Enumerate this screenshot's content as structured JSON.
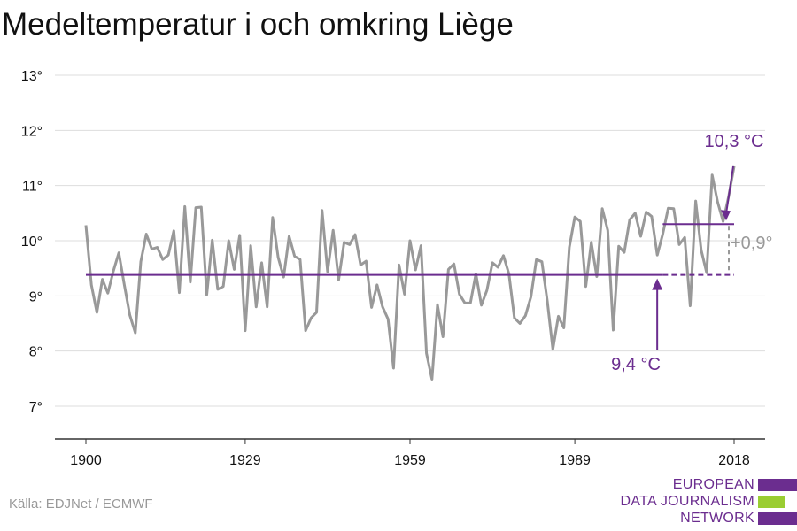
{
  "title": "Medeltemperatur i och omkring Liège",
  "source": "Källa: EDJNet / ECMWF",
  "logo": {
    "line1": "EUROPEAN",
    "line2": "DATA JOURNALISM",
    "line3": "NETWORK"
  },
  "colors": {
    "series": "#999999",
    "accent": "#6b2d8f",
    "logo_green": "#9acd32",
    "grid": "#dddddd"
  },
  "chart_data": {
    "type": "line",
    "title": "Medeltemperatur i och omkring Liège",
    "xlim": [
      1900,
      2018
    ],
    "ylim": [
      7,
      13
    ],
    "x_ticks": [
      1900,
      1929,
      1959,
      1989,
      2018
    ],
    "x_tick_labels": [
      "1900",
      "1929",
      "1959",
      "1989",
      "2018"
    ],
    "y_ticks": [
      7,
      8,
      9,
      10,
      11,
      12,
      13
    ],
    "y_tick_labels": [
      "7°",
      "8°",
      "9°",
      "10°",
      "11°",
      "12°",
      "13°"
    ],
    "grid": "horizontal",
    "series": [
      {
        "x": [
          1900,
          1901,
          1902,
          1903,
          1904,
          1905,
          1906,
          1907,
          1908,
          1909,
          1910,
          1911,
          1912,
          1913,
          1914,
          1915,
          1916,
          1917,
          1918,
          1919,
          1920,
          1921,
          1922,
          1923,
          1924,
          1925,
          1926,
          1927,
          1928,
          1929,
          1930,
          1931,
          1932,
          1933,
          1934,
          1935,
          1936,
          1937,
          1938,
          1939,
          1940,
          1941,
          1942,
          1943,
          1944,
          1945,
          1946,
          1947,
          1948,
          1949,
          1950,
          1951,
          1952,
          1953,
          1954,
          1955,
          1956,
          1957,
          1958,
          1959,
          1960,
          1961,
          1962,
          1963,
          1964,
          1965,
          1966,
          1967,
          1968,
          1969,
          1970,
          1971,
          1972,
          1973,
          1974,
          1975,
          1976,
          1977,
          1978,
          1979,
          1980,
          1981,
          1982,
          1983,
          1984,
          1985,
          1986,
          1987,
          1988,
          1989,
          1990,
          1991,
          1992,
          1993,
          1994,
          1995,
          1996,
          1997,
          1998,
          1999,
          2000,
          2001,
          2002,
          2003,
          2004,
          2005,
          2006,
          2007,
          2008,
          2009,
          2010,
          2011,
          2012,
          2013,
          2014,
          2015,
          2016,
          2017,
          2018
        ],
        "y": [
          10.28,
          9.2,
          8.7,
          9.3,
          9.05,
          9.45,
          9.78,
          9.2,
          8.65,
          8.33,
          9.62,
          10.12,
          9.85,
          9.88,
          9.66,
          9.74,
          10.18,
          9.06,
          10.62,
          9.25,
          10.6,
          10.61,
          9.02,
          10.01,
          9.12,
          9.17,
          10.0,
          9.48,
          10.1,
          8.37,
          9.91,
          8.8,
          9.6,
          8.8,
          10.42,
          9.7,
          9.34,
          10.08,
          9.72,
          9.66,
          8.37,
          8.6,
          8.7,
          10.55,
          9.44,
          10.19,
          9.29,
          9.97,
          9.93,
          10.11,
          9.56,
          9.63,
          8.79,
          9.2,
          8.8,
          8.58,
          7.69,
          9.56,
          9.03,
          10.0,
          9.47,
          9.91,
          7.96,
          7.49,
          8.84,
          8.26,
          9.48,
          9.58,
          9.03,
          8.87,
          8.87,
          9.4,
          8.83,
          9.1,
          9.6,
          9.52,
          9.73,
          9.4,
          8.6,
          8.5,
          8.64,
          8.98,
          9.66,
          9.62,
          8.9,
          8.03,
          8.63,
          8.42,
          9.88,
          10.43,
          10.35,
          9.17,
          9.97,
          9.35,
          10.58,
          10.19,
          8.38,
          9.9,
          9.79,
          10.38,
          10.5,
          10.08,
          10.52,
          10.44,
          9.74,
          10.12,
          10.59,
          10.58,
          9.93,
          10.06,
          8.82,
          10.72,
          9.83,
          9.42,
          11.19,
          10.7,
          10.35,
          10.8,
          11.35
        ]
      }
    ],
    "baseline": {
      "label": "9,4 °C",
      "value": 9.38,
      "from": 1900,
      "to": 2018,
      "dashed_from": 2005
    },
    "recent": {
      "label": "10,3 °C",
      "value": 10.3,
      "from": 2005,
      "to": 2018
    },
    "difference_label": "+0,9°"
  }
}
